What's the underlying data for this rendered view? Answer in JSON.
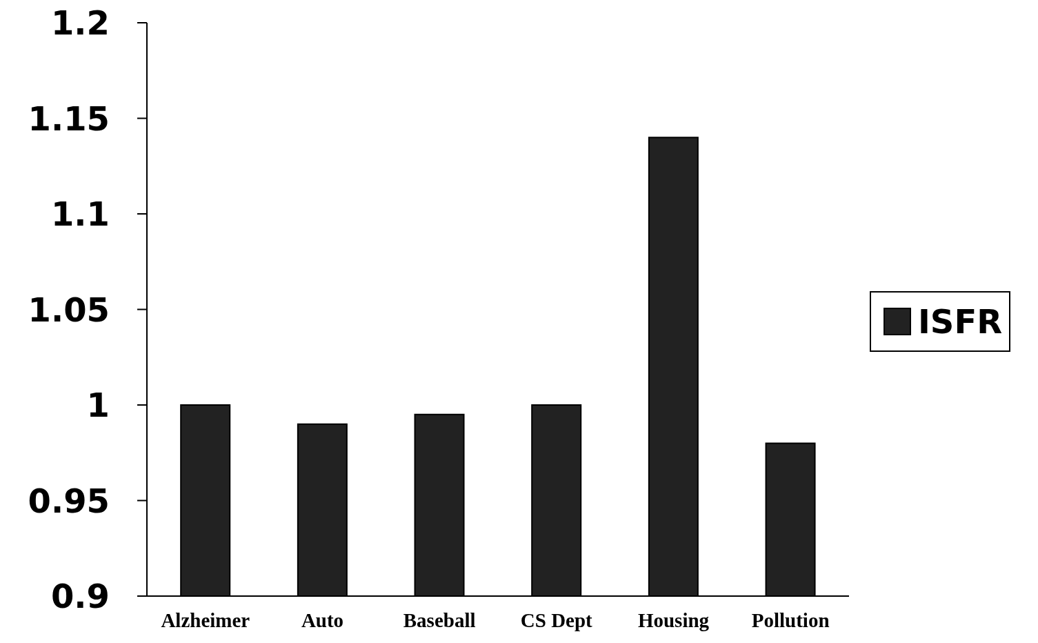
{
  "chart_data": {
    "type": "bar",
    "categories": [
      "Alzheimer",
      "Auto",
      "Baseball",
      "CS Dept",
      "Housing",
      "Pollution"
    ],
    "series": [
      {
        "name": "ISFR",
        "color": "#222222",
        "values": [
          1.0,
          0.99,
          0.995,
          1.0,
          1.14,
          0.98
        ]
      }
    ],
    "ylim": [
      0.9,
      1.2
    ],
    "yticks": [
      0.9,
      0.95,
      1,
      1.05,
      1.1,
      1.15,
      1.2
    ],
    "grid": false,
    "legend": "right"
  }
}
